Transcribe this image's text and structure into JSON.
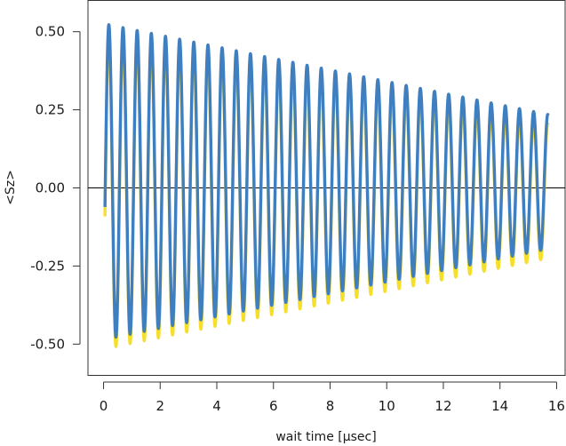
{
  "chart_data": {
    "type": "line",
    "title": "",
    "xlabel": "wait time [µsec]",
    "ylabel": "<Sz>",
    "xlim": [
      -0.55,
      16.3
    ],
    "ylim": [
      -0.6,
      0.6
    ],
    "x_ticks": [
      0,
      2,
      4,
      6,
      8,
      10,
      12,
      14,
      16
    ],
    "x_tick_labels": [
      "0",
      "2",
      "4",
      "6",
      "8",
      "10",
      "12",
      "14",
      "16"
    ],
    "y_ticks": [
      0.5,
      0.25,
      0.0,
      -0.25,
      -0.5
    ],
    "y_tick_labels": [
      "0.50",
      "0.25",
      "0.00",
      "-0.25",
      "-0.50"
    ],
    "reference_line_y": 0,
    "grid": false,
    "legend": "none",
    "series": [
      {
        "color": "#F6DF2A",
        "x_start": 0.05,
        "x_end": 15.7,
        "oscillation_frequency_mhz": 2.0,
        "amplitude_start": 0.505,
        "amplitude_end": 0.215,
        "offset": -0.01,
        "phase_rad": -2.36
      },
      {
        "color": "#3F7FBF",
        "x_start": 0.05,
        "x_end": 15.7,
        "oscillation_frequency_mhz": 2.0,
        "amplitude_start": 0.505,
        "amplitude_end": 0.215,
        "offset": 0.02,
        "phase_rad": -2.36
      }
    ]
  }
}
